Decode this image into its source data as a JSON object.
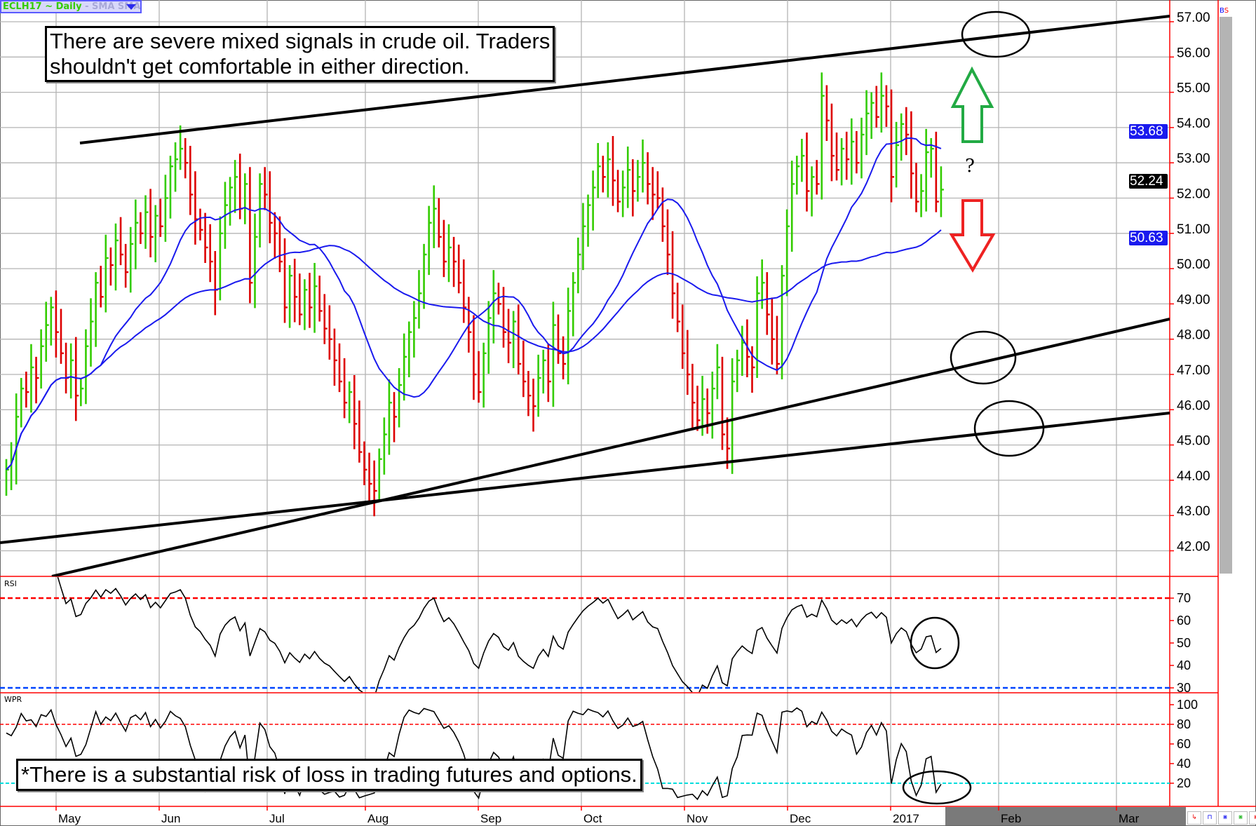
{
  "header": {
    "symbol": "ECLH17 ~ Daily",
    "studies": " -  SMA SMA"
  },
  "annotations": {
    "note_line1": "There are severe mixed signals in crude oil. Traders",
    "note_line2": "shouldn't get comfortable in either direction.",
    "question_mark": "?",
    "disclaimer": "*There is a substantial risk of loss in trading futures and options."
  },
  "panels": {
    "rsi_label": "RSI",
    "wpr_label": "WPR"
  },
  "sidebar": {
    "bs_b": "B",
    "bs_s": "S"
  },
  "price_tags": {
    "sma_fast": "53.68",
    "last": "52.24",
    "sma_slow": "50.63"
  },
  "colors": {
    "up": "#33cc00",
    "down": "#dd0000",
    "sma": "#1a1aee",
    "rsi_upper": "#ff0000",
    "rsi_lower": "#0044ff",
    "wpr_upper": "#ff0000",
    "wpr_lower": "#00dddd",
    "axis": "#ff0000",
    "grid": "#b4b4b4",
    "arrow_up": "#22aa44",
    "arrow_down": "#ee2222"
  },
  "chart_data": {
    "type": "ohlc_bar",
    "symbol": "ECLH17",
    "interval": "Daily",
    "price_ticks": [
      "42.00",
      "43.00",
      "44.00",
      "45.00",
      "46.00",
      "47.00",
      "48.00",
      "49.00",
      "50.00",
      "51.00",
      "52.00",
      "53.00",
      "54.00",
      "55.00",
      "56.00",
      "57.00"
    ],
    "ylim": [
      41.3,
      57.6
    ],
    "x_labels": [
      "May",
      "Jun",
      "Jul",
      "Aug",
      "Sep",
      "Oct",
      "Nov",
      "Dec",
      "2017",
      "Feb",
      "Mar"
    ],
    "grid": true,
    "closes": [
      44.3,
      44.6,
      45.8,
      46.6,
      46.5,
      47.2,
      46.9,
      47.8,
      48.4,
      48.9,
      48.2,
      47.6,
      46.9,
      47.4,
      46.4,
      46.6,
      47.8,
      48.5,
      49.6,
      49.2,
      50.3,
      50.1,
      50.8,
      50.4,
      49.9,
      50.7,
      51.3,
      51.0,
      51.6,
      50.9,
      51.5,
      51.2,
      52.0,
      52.9,
      53.1,
      53.4,
      53.0,
      52.1,
      51.4,
      51.1,
      50.6,
      50.2,
      49.4,
      51.0,
      51.8,
      52.3,
      52.6,
      51.7,
      52.4,
      49.6,
      50.9,
      52.4,
      52.1,
      51.3,
      51.0,
      50.2,
      48.9,
      49.8,
      49.2,
      48.7,
      49.4,
      48.9,
      49.5,
      48.8,
      48.3,
      48.0,
      47.4,
      46.8,
      46.2,
      46.5,
      45.6,
      44.8,
      44.3,
      43.9,
      43.7,
      44.6,
      45.3,
      46.2,
      45.8,
      46.7,
      47.5,
      48.2,
      48.6,
      49.3,
      50.4,
      51.3,
      51.7,
      50.9,
      50.2,
      50.6,
      50.2,
      49.6,
      48.9,
      48.2,
      47.0,
      46.5,
      47.6,
      48.6,
      49.3,
      49.0,
      48.2,
      47.9,
      48.5,
      47.3,
      46.8,
      46.4,
      46.1,
      46.9,
      47.4,
      46.8,
      48.4,
      47.6,
      47.3,
      48.8,
      49.6,
      50.4,
      51.2,
      51.8,
      52.3,
      52.9,
      52.6,
      53.1,
      52.5,
      51.9,
      52.3,
      52.8,
      52.2,
      52.6,
      53.0,
      52.4,
      52.1,
      52.0,
      51.2,
      50.4,
      49.3,
      48.5,
      47.6,
      47.0,
      46.2,
      45.7,
      46.3,
      45.9,
      46.6,
      47.2,
      45.3,
      44.9,
      46.8,
      47.4,
      47.9,
      47.5,
      47.2,
      49.3,
      49.6,
      48.7,
      48.0,
      47.3,
      49.8,
      51.2,
      52.4,
      52.9,
      53.2,
      52.2,
      52.6,
      52.4,
      54.9,
      54.2,
      53.2,
      52.8,
      53.4,
      53.1,
      53.6,
      53.0,
      53.8,
      54.4,
      54.7,
      54.3,
      54.9,
      54.6,
      52.6,
      53.5,
      54.1,
      53.8,
      52.7,
      51.9,
      52.2,
      53.3,
      53.4,
      51.9,
      52.24
    ],
    "last_price": 52.24,
    "sma_last_values": [
      53.68,
      50.63
    ],
    "rsi": {
      "ticks": [
        "70",
        "60",
        "50",
        "40",
        "30"
      ],
      "levels": [
        70,
        30
      ]
    },
    "wpr": {
      "ticks": [
        "100",
        "80",
        "60",
        "40",
        "20"
      ],
      "levels": [
        80,
        20
      ]
    }
  }
}
